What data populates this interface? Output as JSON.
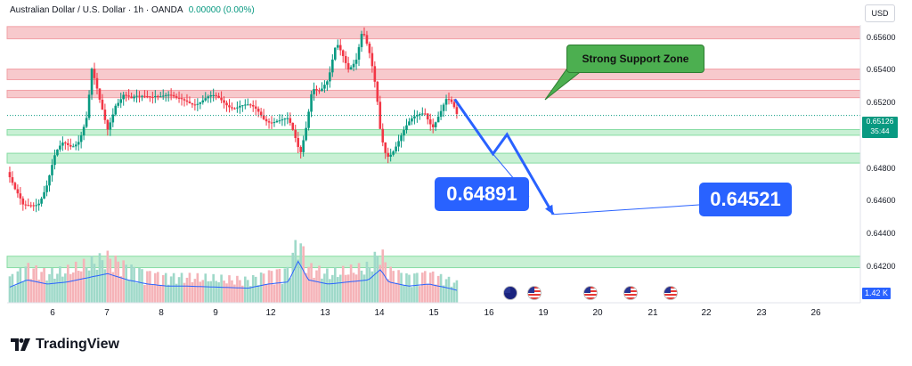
{
  "header": {
    "title": "Australian Dollar / U.S. Dollar · 1h · OANDA",
    "change": "0.00000 (0.00%)"
  },
  "currency": "USD",
  "price_axis": [
    "0.65600",
    "0.65400",
    "0.65200",
    "0.65000",
    "0.64800",
    "0.64600",
    "0.64400",
    "0.64200"
  ],
  "current_price": {
    "value": "0.65126",
    "countdown": "35:44"
  },
  "volume_label": "1.42 K",
  "date_axis": [
    "6",
    "7",
    "8",
    "9",
    "12",
    "13",
    "14",
    "15",
    "16",
    "19",
    "20",
    "21",
    "22",
    "23",
    "26"
  ],
  "annotations": {
    "support_label": "Strong Support Zone",
    "target_1": "0.64891",
    "target_2": "0.64521"
  },
  "brand": "TradingView",
  "colors": {
    "bull": "#089981",
    "bear": "#f23645",
    "resistance_zone": "#f7c9cc",
    "support_zone": "#c8f0d4",
    "projection": "#2962ff"
  },
  "chart_data": {
    "type": "candlestick",
    "symbol": "AUDUSD",
    "timeframe": "1h",
    "ylim": [
      0.641,
      0.6568
    ],
    "x_domain": [
      5.5,
      26.75
    ],
    "close_series": [
      [
        5.5,
        0.6478
      ],
      [
        5.7,
        0.6464
      ],
      [
        5.9,
        0.6456
      ],
      [
        6.1,
        0.646
      ],
      [
        6.3,
        0.6462
      ],
      [
        6.5,
        0.647
      ],
      [
        6.7,
        0.6486
      ],
      [
        6.9,
        0.6495
      ],
      [
        7.1,
        0.6496
      ],
      [
        7.3,
        0.65
      ],
      [
        7.5,
        0.6512
      ],
      [
        7.6,
        0.6539
      ],
      [
        7.8,
        0.652
      ],
      [
        8.0,
        0.6505
      ],
      [
        8.2,
        0.6522
      ],
      [
        8.4,
        0.6526
      ],
      [
        8.6,
        0.652
      ],
      [
        8.8,
        0.6522
      ],
      [
        9.0,
        0.6526
      ],
      [
        9.2,
        0.6528
      ],
      [
        9.4,
        0.6525
      ],
      [
        9.7,
        0.652
      ],
      [
        10.0,
        0.6523
      ],
      [
        11.3,
        0.652
      ],
      [
        11.6,
        0.6515
      ],
      [
        11.9,
        0.6511
      ],
      [
        12.2,
        0.6512
      ],
      [
        12.5,
        0.6508
      ],
      [
        12.65,
        0.6498
      ],
      [
        12.8,
        0.6488
      ],
      [
        12.95,
        0.6508
      ],
      [
        13.1,
        0.6533
      ],
      [
        13.3,
        0.6528
      ],
      [
        13.5,
        0.6531
      ],
      [
        13.7,
        0.6555
      ],
      [
        13.85,
        0.6551
      ],
      [
        14.0,
        0.6544
      ],
      [
        14.2,
        0.6549
      ],
      [
        14.35,
        0.6564
      ],
      [
        14.55,
        0.6545
      ],
      [
        14.7,
        0.6525
      ],
      [
        14.8,
        0.6502
      ],
      [
        14.95,
        0.649
      ],
      [
        15.1,
        0.6493
      ],
      [
        15.3,
        0.6499
      ],
      [
        15.5,
        0.6505
      ],
      [
        15.75,
        0.6513
      ],
      [
        15.9,
        0.6517
      ],
      [
        16.1,
        0.6508
      ],
      [
        16.3,
        0.6514
      ],
      [
        16.45,
        0.652
      ],
      [
        16.6,
        0.6517
      ],
      [
        16.7,
        0.65126
      ]
    ],
    "volume_series": [
      [
        5.5,
        0.35
      ],
      [
        6.0,
        0.55
      ],
      [
        6.5,
        0.45
      ],
      [
        7.0,
        0.5
      ],
      [
        7.5,
        0.6
      ],
      [
        8.0,
        0.7
      ],
      [
        8.5,
        0.55
      ],
      [
        9.0,
        0.45
      ],
      [
        9.5,
        0.4
      ],
      [
        10.0,
        0.4
      ],
      [
        11.5,
        0.35
      ],
      [
        12.0,
        0.45
      ],
      [
        12.5,
        0.5
      ],
      [
        12.75,
        1.0
      ],
      [
        13.0,
        0.55
      ],
      [
        13.5,
        0.45
      ],
      [
        14.0,
        0.5
      ],
      [
        14.5,
        0.55
      ],
      [
        14.8,
        0.8
      ],
      [
        15.0,
        0.5
      ],
      [
        15.5,
        0.4
      ],
      [
        16.0,
        0.45
      ],
      [
        16.5,
        0.35
      ],
      [
        16.7,
        0.3
      ]
    ],
    "zones": [
      {
        "kind": "resistance",
        "range": [
          0.65595,
          0.6567
        ]
      },
      {
        "kind": "resistance",
        "range": [
          0.65345,
          0.6541
        ]
      },
      {
        "kind": "resistance",
        "range": [
          0.65235,
          0.6528
        ]
      },
      {
        "kind": "support",
        "range": [
          0.65005,
          0.6504
        ]
      },
      {
        "kind": "support",
        "range": [
          0.64835,
          0.64895
        ]
      },
      {
        "kind": "support",
        "range": [
          0.64195,
          0.64265
        ]
      }
    ],
    "projection_path": [
      [
        16.65,
        0.65225
      ],
      [
        17.6,
        0.64891
      ],
      [
        17.95,
        0.6501
      ],
      [
        19.1,
        0.64521
      ]
    ],
    "event_flags": [
      {
        "x": 18.0,
        "country": "AU"
      },
      {
        "x": 18.6,
        "country": "US"
      },
      {
        "x": 20.0,
        "country": "US"
      },
      {
        "x": 21.0,
        "country": "US"
      },
      {
        "x": 22.0,
        "country": "US"
      }
    ]
  }
}
